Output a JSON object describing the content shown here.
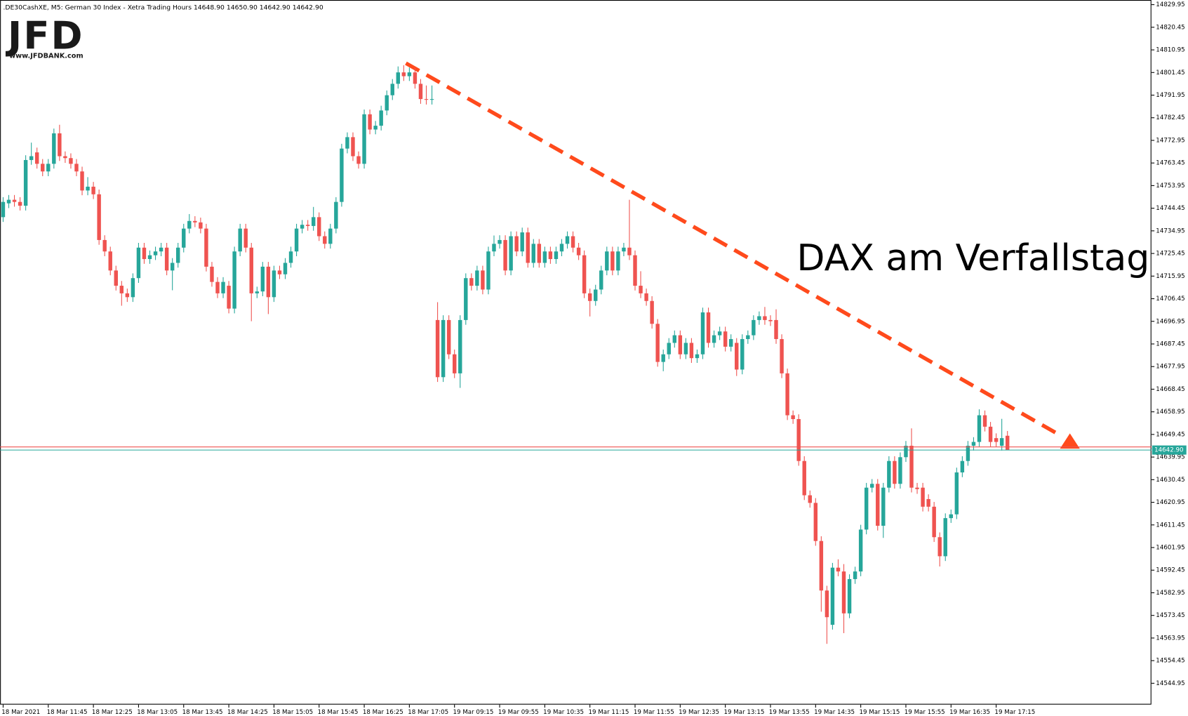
{
  "chart_data": {
    "type": "candlestick",
    "header": ".DE30CashXE, M5:  German 30 Index  - Xetra Trading Hours  14648.90 14650.90 14642.90 14642.90",
    "logo": {
      "text": "JFD",
      "url": "www.JFDBANK.com"
    },
    "annotation": "DAX am Verfallstag",
    "colors": {
      "up": "#26a69a",
      "down": "#ef5350"
    },
    "ylim": [
      14536.0,
      14831.9
    ],
    "yticks": [
      14829.95,
      14820.45,
      14810.95,
      14801.45,
      14791.95,
      14782.45,
      14772.95,
      14763.45,
      14753.95,
      14744.45,
      14734.95,
      14725.45,
      14715.95,
      14706.45,
      14696.95,
      14687.45,
      14677.95,
      14668.45,
      14658.95,
      14649.45,
      14639.95,
      14630.45,
      14620.95,
      14611.45,
      14601.95,
      14592.45,
      14582.95,
      14573.45,
      14563.95,
      14554.45,
      14544.95
    ],
    "price_line": {
      "value": 14642.9,
      "label": "14642.90"
    },
    "ask_line": 14644.2,
    "categories": [
      "18 Mar 2021",
      null,
      null,
      null,
      null,
      null,
      null,
      null,
      "18 Mar 11:45",
      null,
      null,
      null,
      null,
      null,
      null,
      null,
      "18 Mar 12:25",
      null,
      null,
      null,
      null,
      null,
      null,
      null,
      "18 Mar 13:05",
      null,
      null,
      null,
      null,
      null,
      null,
      null,
      "18 Mar 13:45",
      null,
      null,
      null,
      null,
      null,
      null,
      null,
      "18 Mar 14:25",
      null,
      null,
      null,
      null,
      null,
      null,
      null,
      "18 Mar 15:05",
      null,
      null,
      null,
      null,
      null,
      null,
      null,
      "18 Mar 15:45",
      null,
      null,
      null,
      null,
      null,
      null,
      null,
      "18 Mar 16:25",
      null,
      null,
      null,
      null,
      null,
      null,
      null,
      "18 Mar 17:05",
      null,
      null,
      null,
      null,
      null,
      null,
      null,
      "19 Mar 09:15",
      null,
      null,
      null,
      null,
      null,
      null,
      null,
      "19 Mar 09:55",
      null,
      null,
      null,
      null,
      null,
      null,
      null,
      "19 Mar 10:35",
      null,
      null,
      null,
      null,
      null,
      null,
      null,
      "19 Mar 11:15",
      null,
      null,
      null,
      null,
      null,
      null,
      null,
      "19 Mar 11:55",
      null,
      null,
      null,
      null,
      null,
      null,
      null,
      "19 Mar 12:35",
      null,
      null,
      null,
      null,
      null,
      null,
      null,
      "19 Mar 13:15",
      null,
      null,
      null,
      null,
      null,
      null,
      null,
      "19 Mar 13:55",
      null,
      null,
      null,
      null,
      null,
      null,
      null,
      "19 Mar 14:35",
      null,
      null,
      null,
      null,
      null,
      null,
      null,
      "19 Mar 15:15",
      null,
      null,
      null,
      null,
      null,
      null,
      null,
      "19 Mar 15:55",
      null,
      null,
      null,
      null,
      null,
      null,
      null,
      "19 Mar 16:35",
      null,
      null,
      null,
      null,
      null,
      null,
      null,
      "19 Mar 17:15",
      null,
      null
    ],
    "open": [
      14740.7,
      14746.5,
      14748.0,
      14747.1,
      14745.5,
      14764.7,
      14767.9,
      14763.1,
      14759.9,
      14763.1,
      14775.9,
      14766.3,
      14765.5,
      14763.1,
      14759.9,
      14751.9,
      14753.5,
      14750.3,
      14731.1,
      14726.3,
      14718.3,
      14711.9,
      14708.7,
      14707.1,
      14715.1,
      14727.9,
      14723.1,
      14724.7,
      14726.3,
      14727.9,
      14718.3,
      14721.5,
      14727.9,
      14735.9,
      14739.1,
      14738.5,
      14735.9,
      14719.9,
      14713.5,
      14708.7,
      14711.9,
      14702.3,
      14726.3,
      14735.9,
      14727.9,
      14708.7,
      14709.5,
      14719.9,
      14707.1,
      14718.3,
      14716.7,
      14721.5,
      14726.3,
      14735.9,
      14737.5,
      14737.0,
      14740.7,
      14732.7,
      14729.5,
      14735.9,
      14747.1,
      14769.5,
      14774.3,
      14766.3,
      14763.1,
      14783.9,
      14777.5,
      14779.1,
      14785.5,
      14791.9,
      14796.7,
      14801.5,
      14799.9,
      14801.5,
      14796.7,
      14790.3,
      14790.0,
      14697.5,
      14673.5,
      14697.5,
      14683.1,
      14675.1,
      14697.5,
      14715.1,
      14711.9,
      14718.3,
      14710.3,
      14726.3,
      14729.5,
      14731.1,
      14718.3,
      14732.7,
      14726.3,
      14734.3,
      14721.5,
      14729.5,
      14721.5,
      14726.3,
      14723.1,
      14726.3,
      14729.5,
      14732.7,
      14727.9,
      14724.7,
      14708.7,
      14705.5,
      14710.3,
      14718.3,
      14726.3,
      14718.3,
      14726.3,
      14727.9,
      14724.7,
      14711.9,
      14708.7,
      14705.5,
      14695.9,
      14679.9,
      14683.1,
      14687.9,
      14691.1,
      14683.1,
      14687.9,
      14681.5,
      14683.1,
      14700.7,
      14687.9,
      14691.1,
      14692.7,
      14686.3,
      14687.9,
      14676.7,
      14689.5,
      14691.1,
      14697.5,
      14699.1,
      14697.5,
      14697.5,
      14689.5,
      14675.1,
      14657.5,
      14655.9,
      14638.3,
      14623.9,
      14620.7,
      14604.7,
      14583.9,
      14569.5,
      14593.5,
      14591.9,
      14574.3,
      14588.7,
      14591.9,
      14609.5,
      14627.1,
      14628.7,
      14611.1,
      14627.1,
      14638.3,
      14628.7,
      14639.9,
      14644.7,
      14627.1,
      14627.1,
      14622.3,
      14619.1,
      14606.3,
      14598.3,
      14614.3,
      14615.9,
      14633.5,
      14638.3,
      14644.7,
      14646.3,
      14657.5,
      14652.7,
      14647.9,
      14644.7,
      14648.9
    ],
    "high": [
      14749.1,
      14750.0,
      14750.0,
      14749.1,
      14766.7,
      14772.0,
      14769.9,
      14765.1,
      14765.1,
      14777.9,
      14779.5,
      14768.3,
      14767.5,
      14765.1,
      14761.9,
      14757.5,
      14755.5,
      14752.3,
      14733.1,
      14728.3,
      14720.3,
      14713.9,
      14710.7,
      14717.1,
      14729.9,
      14729.9,
      14726.7,
      14728.3,
      14729.9,
      14729.9,
      14723.5,
      14729.9,
      14737.9,
      14742.0,
      14741.1,
      14740.5,
      14737.9,
      14721.9,
      14715.5,
      14715.5,
      14713.9,
      14728.3,
      14737.9,
      14737.9,
      14729.9,
      14711.5,
      14721.9,
      14721.9,
      14720.3,
      14720.3,
      14723.5,
      14728.3,
      14737.9,
      14739.5,
      14739.5,
      14745.0,
      14742.7,
      14734.7,
      14737.9,
      14749.1,
      14771.5,
      14776.3,
      14776.3,
      14768.3,
      14785.9,
      14785.9,
      14781.1,
      14787.5,
      14793.9,
      14798.7,
      14804.0,
      14804.5,
      14803.5,
      14803.5,
      14798.7,
      14796.0,
      14796.0,
      14705.0,
      14699.5,
      14699.5,
      14685.1,
      14699.5,
      14717.1,
      14717.1,
      14720.3,
      14720.3,
      14728.3,
      14733.0,
      14733.1,
      14733.1,
      14734.7,
      14734.7,
      14736.3,
      14736.3,
      14731.5,
      14731.5,
      14728.3,
      14728.3,
      14728.3,
      14731.5,
      14734.7,
      14734.7,
      14729.9,
      14726.7,
      14710.7,
      14712.3,
      14720.3,
      14728.3,
      14728.3,
      14728.3,
      14729.9,
      14748.0,
      14726.7,
      14718.0,
      14710.7,
      14707.5,
      14697.9,
      14685.1,
      14689.9,
      14693.1,
      14693.1,
      14689.9,
      14689.9,
      14685.1,
      14702.7,
      14702.7,
      14693.1,
      14694.7,
      14694.7,
      14691.5,
      14689.9,
      14691.5,
      14693.1,
      14699.5,
      14701.1,
      14703.0,
      14699.5,
      14702.0,
      14691.5,
      14677.1,
      14659.5,
      14657.9,
      14640.3,
      14625.9,
      14622.7,
      14606.7,
      14585.9,
      14595.5,
      14597.0,
      14595.0,
      14590.7,
      14593.9,
      14611.5,
      14629.1,
      14630.7,
      14630.7,
      14629.1,
      14640.3,
      14640.3,
      14641.9,
      14646.7,
      14652.0,
      14629.1,
      14629.1,
      14624.3,
      14621.1,
      14608.3,
      14616.3,
      14617.9,
      14635.5,
      14640.3,
      14646.7,
      14648.3,
      14660.0,
      14659.5,
      14654.7,
      14649.9,
      14656.0,
      14650.9
    ],
    "low": [
      14738.7,
      14744.5,
      14745.1,
      14743.5,
      14743.5,
      14762.7,
      14761.1,
      14757.9,
      14757.9,
      14761.1,
      14764.3,
      14763.5,
      14761.1,
      14757.9,
      14749.9,
      14749.9,
      14748.3,
      14729.1,
      14724.3,
      14716.3,
      14709.9,
      14703.5,
      14705.1,
      14705.1,
      14713.1,
      14721.1,
      14721.1,
      14722.7,
      14724.3,
      14716.3,
      14710.0,
      14719.5,
      14725.9,
      14733.9,
      14736.5,
      14733.9,
      14717.9,
      14711.5,
      14706.7,
      14706.7,
      14700.3,
      14700.3,
      14724.3,
      14725.9,
      14697.0,
      14706.7,
      14707.5,
      14700.0,
      14705.1,
      14714.7,
      14714.7,
      14719.5,
      14724.3,
      14733.9,
      14735.0,
      14735.0,
      14730.7,
      14727.5,
      14727.5,
      14733.9,
      14745.1,
      14767.5,
      14764.3,
      14761.1,
      14761.1,
      14775.5,
      14775.5,
      14777.1,
      14783.5,
      14789.9,
      14794.7,
      14797.9,
      14797.9,
      14794.7,
      14788.3,
      14788.0,
      14788.0,
      14671.5,
      14671.5,
      14681.1,
      14673.1,
      14669.0,
      14695.5,
      14709.9,
      14709.9,
      14708.3,
      14708.3,
      14724.3,
      14727.5,
      14716.3,
      14716.3,
      14724.3,
      14724.3,
      14719.5,
      14719.5,
      14719.5,
      14719.5,
      14721.1,
      14721.1,
      14724.3,
      14727.5,
      14725.9,
      14722.7,
      14706.7,
      14699.0,
      14703.5,
      14708.3,
      14716.3,
      14716.3,
      14716.3,
      14724.3,
      14722.7,
      14709.9,
      14706.7,
      14703.5,
      14693.9,
      14677.9,
      14676.0,
      14681.1,
      14685.9,
      14681.1,
      14681.1,
      14679.5,
      14679.5,
      14681.1,
      14685.9,
      14685.9,
      14689.1,
      14684.3,
      14684.3,
      14674.0,
      14674.7,
      14687.5,
      14689.1,
      14695.5,
      14695.5,
      14695.0,
      14687.5,
      14673.1,
      14655.5,
      14653.9,
      14636.3,
      14621.9,
      14618.7,
      14602.7,
      14575.0,
      14561.5,
      14567.5,
      14589.9,
      14566.0,
      14572.3,
      14586.7,
      14589.9,
      14607.5,
      14625.1,
      14609.1,
      14606.0,
      14625.1,
      14626.7,
      14626.7,
      14637.9,
      14625.1,
      14624.5,
      14617.1,
      14617.1,
      14604.3,
      14594.0,
      14596.3,
      14612.3,
      14613.9,
      14631.5,
      14636.3,
      14642.7,
      14644.3,
      14650.7,
      14644.3,
      14644.3,
      14642.7,
      14642.9
    ],
    "close": [
      14747.1,
      14748.0,
      14747.1,
      14745.5,
      14764.7,
      14766.3,
      14763.1,
      14759.9,
      14763.1,
      14775.9,
      14766.3,
      14765.5,
      14763.1,
      14759.9,
      14751.9,
      14753.5,
      14750.3,
      14731.1,
      14726.3,
      14718.3,
      14711.9,
      14708.7,
      14707.1,
      14715.1,
      14727.9,
      14723.1,
      14724.7,
      14726.3,
      14727.9,
      14718.3,
      14721.5,
      14727.9,
      14735.9,
      14739.1,
      14738.5,
      14735.9,
      14719.9,
      14713.5,
      14708.7,
      14713.5,
      14702.3,
      14726.3,
      14735.9,
      14727.9,
      14708.7,
      14709.5,
      14719.9,
      14707.1,
      14718.3,
      14716.7,
      14721.5,
      14726.3,
      14735.9,
      14737.5,
      14737.0,
      14740.7,
      14732.7,
      14729.5,
      14735.9,
      14747.1,
      14769.5,
      14774.3,
      14766.3,
      14763.1,
      14783.9,
      14777.5,
      14779.1,
      14785.5,
      14791.9,
      14796.7,
      14801.5,
      14799.9,
      14801.5,
      14796.7,
      14790.3,
      14790.0,
      14790.3,
      14673.5,
      14697.5,
      14683.1,
      14675.1,
      14697.5,
      14715.1,
      14711.9,
      14718.3,
      14710.3,
      14726.3,
      14729.5,
      14731.1,
      14718.3,
      14732.7,
      14726.3,
      14734.3,
      14721.5,
      14729.5,
      14721.5,
      14726.3,
      14723.1,
      14726.3,
      14729.5,
      14732.7,
      14727.9,
      14724.7,
      14708.7,
      14705.5,
      14710.3,
      14718.3,
      14726.3,
      14718.3,
      14726.3,
      14727.9,
      14724.7,
      14711.9,
      14708.7,
      14705.5,
      14695.9,
      14679.9,
      14683.1,
      14687.9,
      14691.1,
      14683.1,
      14687.9,
      14681.5,
      14683.1,
      14700.7,
      14687.9,
      14691.1,
      14692.7,
      14686.3,
      14689.5,
      14676.7,
      14689.5,
      14691.1,
      14697.5,
      14699.1,
      14697.5,
      14697.0,
      14689.5,
      14675.1,
      14657.5,
      14655.9,
      14638.3,
      14623.9,
      14620.7,
      14604.7,
      14583.9,
      14572.7,
      14593.5,
      14591.9,
      14574.3,
      14588.7,
      14591.9,
      14609.5,
      14627.1,
      14628.7,
      14611.1,
      14627.1,
      14638.3,
      14628.7,
      14639.9,
      14644.7,
      14627.1,
      14626.5,
      14619.1,
      14619.1,
      14606.3,
      14598.3,
      14614.3,
      14615.9,
      14633.5,
      14638.3,
      14644.7,
      14646.3,
      14657.5,
      14652.7,
      14646.3,
      14646.3,
      14647.9,
      14642.9
    ]
  }
}
